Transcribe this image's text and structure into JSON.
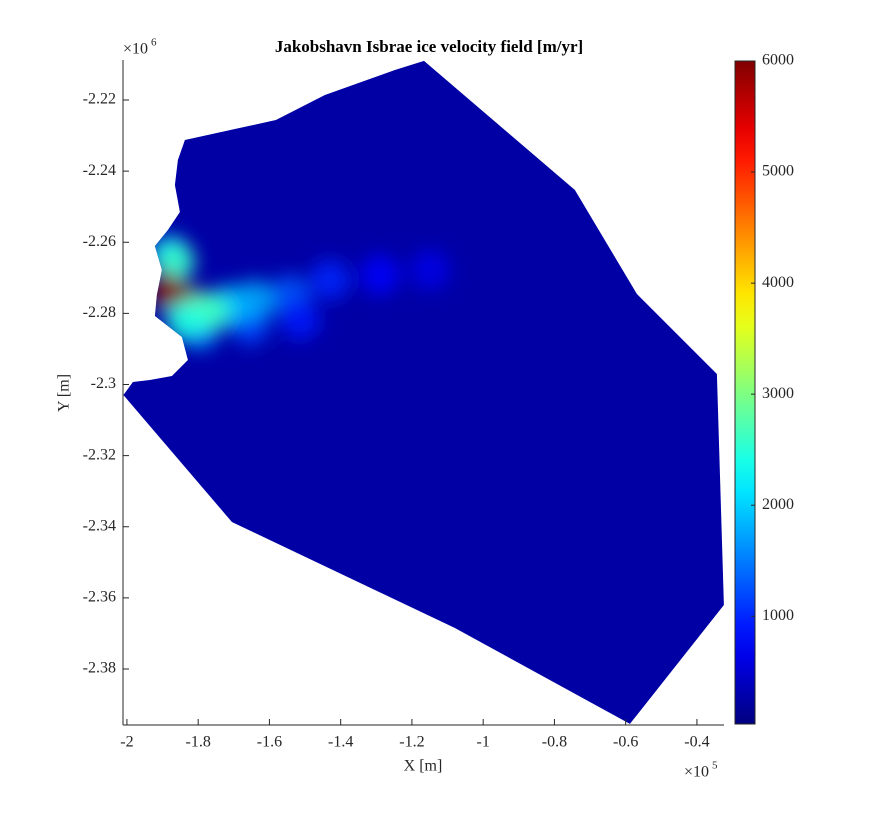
{
  "chart_data": {
    "type": "field",
    "title": "Jakobshavn Isbrae ice velocity field [m/yr]",
    "xlabel": "X [m]",
    "ylabel": "Y [m]",
    "exponent_base": "×10",
    "x_exponent": "5",
    "y_exponent": "6",
    "colormap": "jet",
    "xlim": [
      -201100,
      -32400
    ],
    "ylim": [
      -2395750,
      -2208750
    ],
    "xticks": [
      {
        "value": -200000,
        "label": "-2"
      },
      {
        "value": -180000,
        "label": "-1.8"
      },
      {
        "value": -160000,
        "label": "-1.6"
      },
      {
        "value": -140000,
        "label": "-1.4"
      },
      {
        "value": -120000,
        "label": "-1.2"
      },
      {
        "value": -100000,
        "label": "-1"
      },
      {
        "value": -80000,
        "label": "-0.8"
      },
      {
        "value": -60000,
        "label": "-0.6"
      },
      {
        "value": -40000,
        "label": "-0.4"
      }
    ],
    "yticks": [
      {
        "value": -2220000,
        "label": "-2.22"
      },
      {
        "value": -2240000,
        "label": "-2.24"
      },
      {
        "value": -2260000,
        "label": "-2.26"
      },
      {
        "value": -2280000,
        "label": "-2.28"
      },
      {
        "value": -2300000,
        "label": "-2.3"
      },
      {
        "value": -2320000,
        "label": "-2.32"
      },
      {
        "value": -2340000,
        "label": "-2.34"
      },
      {
        "value": -2360000,
        "label": "-2.36"
      },
      {
        "value": -2380000,
        "label": "-2.38"
      }
    ],
    "clim": [
      30,
      6000
    ],
    "cticks": [
      1000,
      2000,
      3000,
      4000,
      5000,
      6000
    ],
    "background_value": 250,
    "outline": {
      "x": [
        -116600,
        -74250,
        -56840,
        -34390,
        -32420,
        -58810,
        -107930,
        -170530,
        -201000,
        -198320,
        -193540,
        -187370,
        -182880,
        -184560,
        -192140,
        -191580,
        -190180,
        -192140,
        -188490,
        -185120,
        -186530,
        -185680,
        -183720,
        -158180,
        -144420,
        -124770
      ],
      "y": [
        -2209000,
        -2245300,
        -2274550,
        -2297050,
        -2362000,
        -2395450,
        -2368470,
        -2338660,
        -2302950,
        -2299300,
        -2298730,
        -2297610,
        -2293110,
        -2286640,
        -2280740,
        -2274830,
        -2267800,
        -2261050,
        -2256550,
        -2251490,
        -2243900,
        -2236870,
        -2231250,
        -2225620,
        -2218590,
        -2211560
      ]
    },
    "samples": {
      "x": [
        -154250,
        -143020,
        -128980,
        -114950,
        -165470,
        -151440,
        -171090,
        -164070,
        -187930,
        -179510,
        -180910,
        -176700,
        -186530,
        -183720,
        -187930,
        -185120,
        -189330,
        -189900
      ],
      "y": [
        -2274830,
        -2270620,
        -2269210,
        -2267800,
        -2283270,
        -2281860,
        -2277650,
        -2276240,
        -2263590,
        -2284680,
        -2279050,
        -2279610,
        -2265550,
        -2281860,
        -2273430,
        -2273990,
        -2271180,
        -2275680
      ],
      "values": [
        1300,
        1000,
        800,
        650,
        1200,
        900,
        2000,
        1800,
        2000,
        1600,
        3200,
        2600,
        2600,
        2400,
        6000,
        6000,
        6000,
        6000
      ]
    }
  }
}
